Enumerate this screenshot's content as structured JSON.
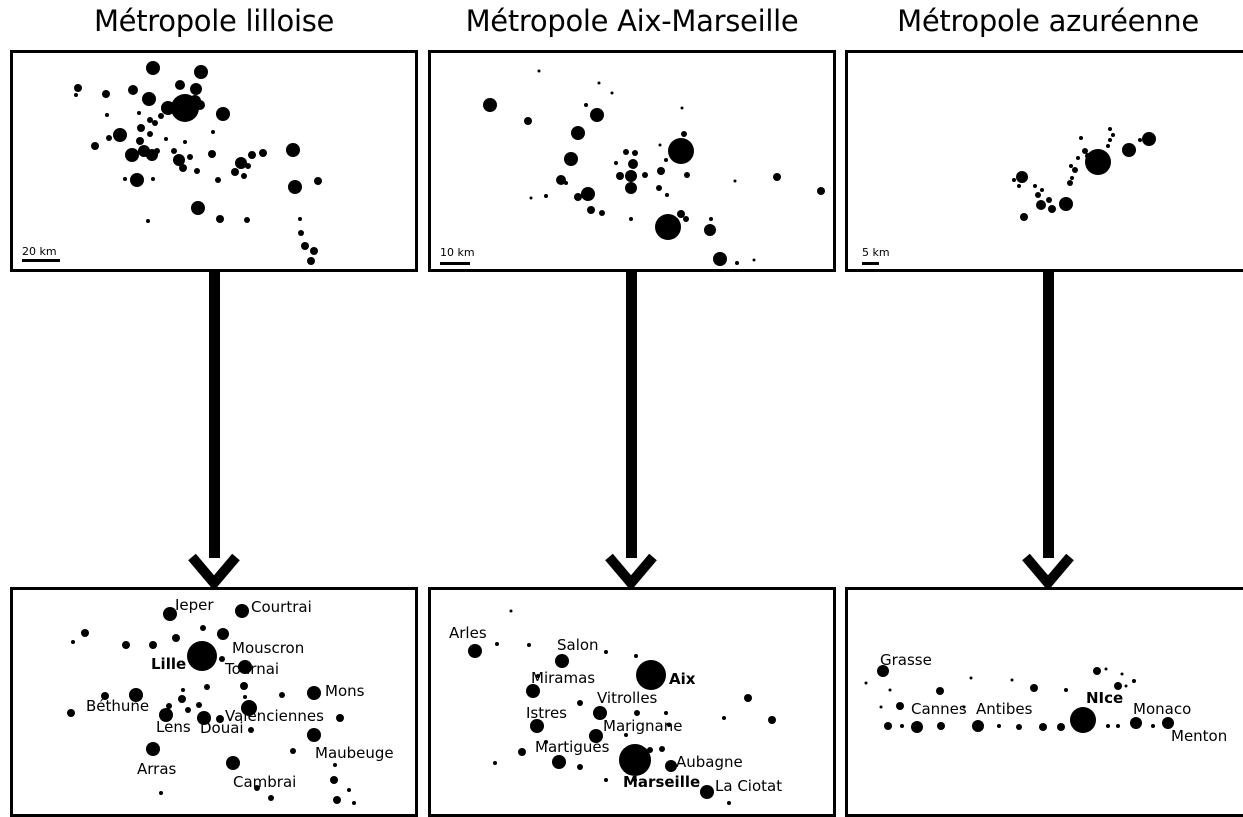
{
  "titles": {
    "lille": "Métropole lilloise",
    "aix": "Métropole Aix-Marseille",
    "azur": "Métropole azuréenne"
  },
  "scales": {
    "lille": "20 km",
    "aix": "10 km",
    "azur": "5 km"
  },
  "labels": {
    "lille": [
      {
        "text": "Ieper",
        "bold": false
      },
      {
        "text": "Courtrai",
        "bold": false
      },
      {
        "text": "Mouscron",
        "bold": false
      },
      {
        "text": "Lille",
        "bold": true
      },
      {
        "text": "Tournai",
        "bold": false
      },
      {
        "text": "Mons",
        "bold": false
      },
      {
        "text": "Béthune",
        "bold": false
      },
      {
        "text": "Lens",
        "bold": false
      },
      {
        "text": "Valenciennes",
        "bold": false
      },
      {
        "text": "Douai",
        "bold": false
      },
      {
        "text": "Maubeuge",
        "bold": false
      },
      {
        "text": "Arras",
        "bold": false
      },
      {
        "text": "Cambrai",
        "bold": false
      }
    ],
    "aix": [
      {
        "text": "Arles",
        "bold": false
      },
      {
        "text": "Salon",
        "bold": false
      },
      {
        "text": "Miramas",
        "bold": false
      },
      {
        "text": "Aix",
        "bold": true
      },
      {
        "text": "Vitrolles",
        "bold": false
      },
      {
        "text": "Istres",
        "bold": false
      },
      {
        "text": "Marignane",
        "bold": false
      },
      {
        "text": "Martigues",
        "bold": false
      },
      {
        "text": "Aubagne",
        "bold": false
      },
      {
        "text": "Marseille",
        "bold": true
      },
      {
        "text": "La Ciotat",
        "bold": false
      }
    ],
    "azur": [
      {
        "text": "Grasse",
        "bold": false
      },
      {
        "text": "Cannes",
        "bold": false
      },
      {
        "text": "Antibes",
        "bold": false
      },
      {
        "text": "NIce",
        "bold": true
      },
      {
        "text": "Monaco",
        "bold": false
      },
      {
        "text": "Menton",
        "bold": false
      }
    ]
  }
}
